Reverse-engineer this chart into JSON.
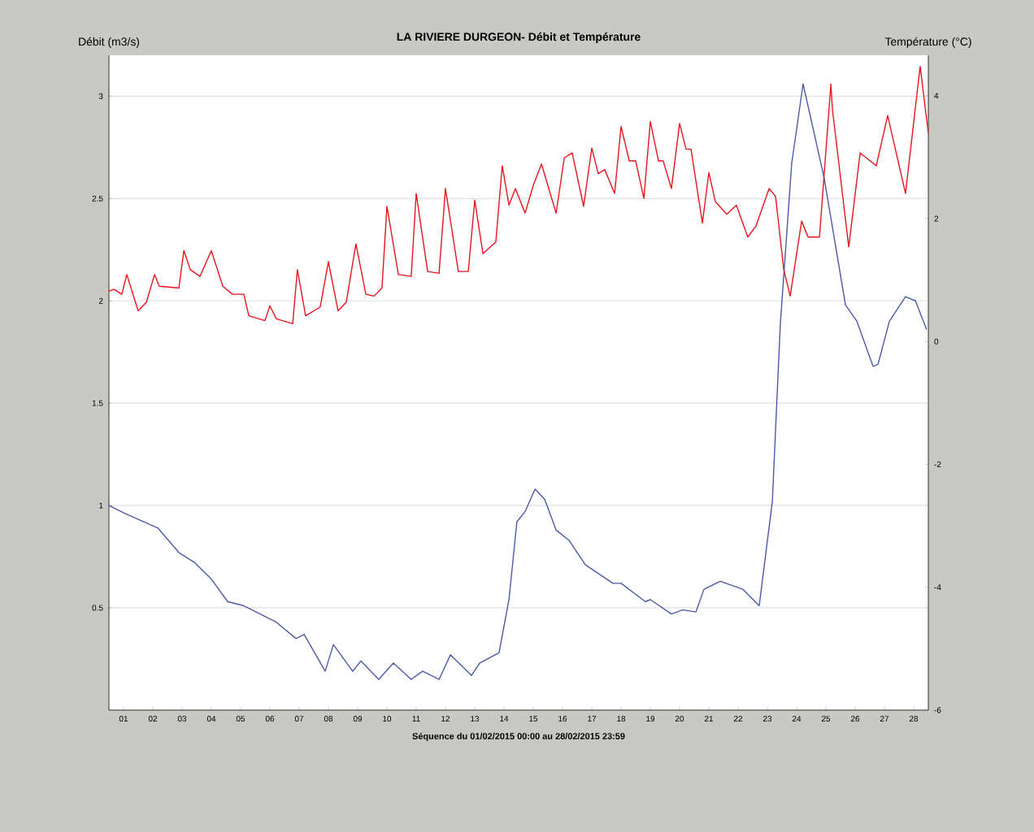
{
  "chart_data": {
    "type": "line",
    "title": "LA RIVIERE DURGEON- Débit et Température",
    "xlabel": "Séquence du  01/02/2015 00:00  au  28/02/2015 23:59",
    "ylabel": "Débit (m3/s)",
    "y2label": "Température (°C)",
    "xlim": [
      0,
      28
    ],
    "xticks": [
      {
        "value": 0.5,
        "label": "01"
      },
      {
        "value": 1.5,
        "label": "02"
      },
      {
        "value": 2.5,
        "label": "03"
      },
      {
        "value": 3.5,
        "label": "04"
      },
      {
        "value": 4.5,
        "label": "05"
      },
      {
        "value": 5.5,
        "label": "06"
      },
      {
        "value": 6.5,
        "label": "07"
      },
      {
        "value": 7.5,
        "label": "08"
      },
      {
        "value": 8.5,
        "label": "09"
      },
      {
        "value": 9.5,
        "label": "10"
      },
      {
        "value": 10.5,
        "label": "11"
      },
      {
        "value": 11.5,
        "label": "12"
      },
      {
        "value": 12.5,
        "label": "13"
      },
      {
        "value": 13.5,
        "label": "14"
      },
      {
        "value": 14.5,
        "label": "15"
      },
      {
        "value": 15.5,
        "label": "16"
      },
      {
        "value": 16.5,
        "label": "17"
      },
      {
        "value": 17.5,
        "label": "18"
      },
      {
        "value": 18.5,
        "label": "19"
      },
      {
        "value": 19.5,
        "label": "20"
      },
      {
        "value": 20.5,
        "label": "21"
      },
      {
        "value": 21.5,
        "label": "22"
      },
      {
        "value": 22.5,
        "label": "23"
      },
      {
        "value": 23.5,
        "label": "24"
      },
      {
        "value": 24.5,
        "label": "25"
      },
      {
        "value": 25.5,
        "label": "26"
      },
      {
        "value": 26.5,
        "label": "27"
      },
      {
        "value": 27.5,
        "label": "28"
      }
    ],
    "ylim": [
      0,
      3.2
    ],
    "yticks": [
      0.5,
      1,
      1.5,
      2,
      2.5,
      3
    ],
    "y2lim": [
      -6,
      4.66
    ],
    "y2ticks": [
      -6,
      -4,
      -2,
      0,
      2,
      4
    ],
    "grid": "y",
    "series": [
      {
        "color": "#4a5aa8",
        "x": [
          0,
          0.56,
          1.67,
          2.39,
          2.94,
          3.5,
          4.06,
          4.61,
          5.72,
          6.39,
          6.67,
          7.39,
          7.67,
          8.33,
          8.61,
          9.22,
          9.72,
          10.33,
          10.72,
          11.28,
          11.67,
          12.39,
          12.67,
          13.33,
          13.67,
          13.94,
          14.22,
          14.56,
          14.89,
          15.28,
          15.72,
          16.28,
          17.22,
          17.5,
          18.33,
          18.5,
          19.22,
          19.61,
          20.06,
          20.33,
          20.89,
          21.67,
          22.22,
          22.67,
          22.94,
          23.33,
          23.72,
          24.44,
          25.17,
          25.56,
          26.11,
          26.28,
          26.67,
          27.22,
          27.56,
          27.94
        ],
        "values": [
          1.0,
          0.96,
          0.89,
          0.77,
          0.72,
          0.64,
          0.53,
          0.51,
          0.43,
          0.35,
          0.37,
          0.19,
          0.32,
          0.19,
          0.24,
          0.15,
          0.23,
          0.15,
          0.19,
          0.15,
          0.27,
          0.17,
          0.23,
          0.28,
          0.54,
          0.92,
          0.97,
          1.08,
          1.03,
          0.88,
          0.83,
          0.71,
          0.62,
          0.62,
          0.53,
          0.54,
          0.47,
          0.49,
          0.48,
          0.59,
          0.63,
          0.59,
          0.51,
          1.02,
          1.88,
          2.67,
          3.06,
          2.6,
          1.98,
          1.9,
          1.68,
          1.69,
          1.9,
          2.02,
          2.0,
          1.86
        ]
      },
      {
        "color": "#e8141c",
        "axis": "y2",
        "x": [
          0,
          0.17,
          0.44,
          0.61,
          1.0,
          1.28,
          1.56,
          1.72,
          2.39,
          2.56,
          2.78,
          3.11,
          3.5,
          3.89,
          4.22,
          4.61,
          4.78,
          5.33,
          5.5,
          5.72,
          6.28,
          6.44,
          6.72,
          7.22,
          7.5,
          7.83,
          8.11,
          8.44,
          8.78,
          9.06,
          9.33,
          9.5,
          9.89,
          10.33,
          10.5,
          10.89,
          11.28,
          11.5,
          11.94,
          12.28,
          12.5,
          12.78,
          13.22,
          13.44,
          13.67,
          13.89,
          14.22,
          14.5,
          14.78,
          15.28,
          15.56,
          15.83,
          16.22,
          16.5,
          16.72,
          16.94,
          17.28,
          17.5,
          17.78,
          18.0,
          18.28,
          18.5,
          18.78,
          18.94,
          19.22,
          19.5,
          19.72,
          19.89,
          20.28,
          20.5,
          20.72,
          21.11,
          21.44,
          21.83,
          22.11,
          22.56,
          22.78,
          23.06,
          23.28,
          23.67,
          23.89,
          24.28,
          24.67,
          24.72,
          25.28,
          25.67,
          26.22,
          26.61,
          27.22,
          27.72,
          28.0
        ],
        "values": [
          0.82,
          0.85,
          0.77,
          1.09,
          0.5,
          0.64,
          1.09,
          0.9,
          0.87,
          1.48,
          1.17,
          1.06,
          1.48,
          0.9,
          0.77,
          0.77,
          0.42,
          0.34,
          0.58,
          0.37,
          0.29,
          1.17,
          0.42,
          0.56,
          1.3,
          0.5,
          0.64,
          1.59,
          0.77,
          0.74,
          0.87,
          2.2,
          1.09,
          1.06,
          2.41,
          1.14,
          1.11,
          2.49,
          1.14,
          1.14,
          2.3,
          1.43,
          1.62,
          2.86,
          2.22,
          2.49,
          2.09,
          2.54,
          2.89,
          2.09,
          2.99,
          3.07,
          2.2,
          3.15,
          2.73,
          2.8,
          2.41,
          3.5,
          2.94,
          2.94,
          2.33,
          3.58,
          2.94,
          2.94,
          2.49,
          3.55,
          3.13,
          3.13,
          1.93,
          2.75,
          2.28,
          2.07,
          2.22,
          1.7,
          1.88,
          2.49,
          2.36,
          1.17,
          0.74,
          1.96,
          1.7,
          1.7,
          4.19,
          3.79,
          1.54,
          3.07,
          2.86,
          3.68,
          2.41,
          4.48,
          3.39
        ]
      }
    ]
  }
}
